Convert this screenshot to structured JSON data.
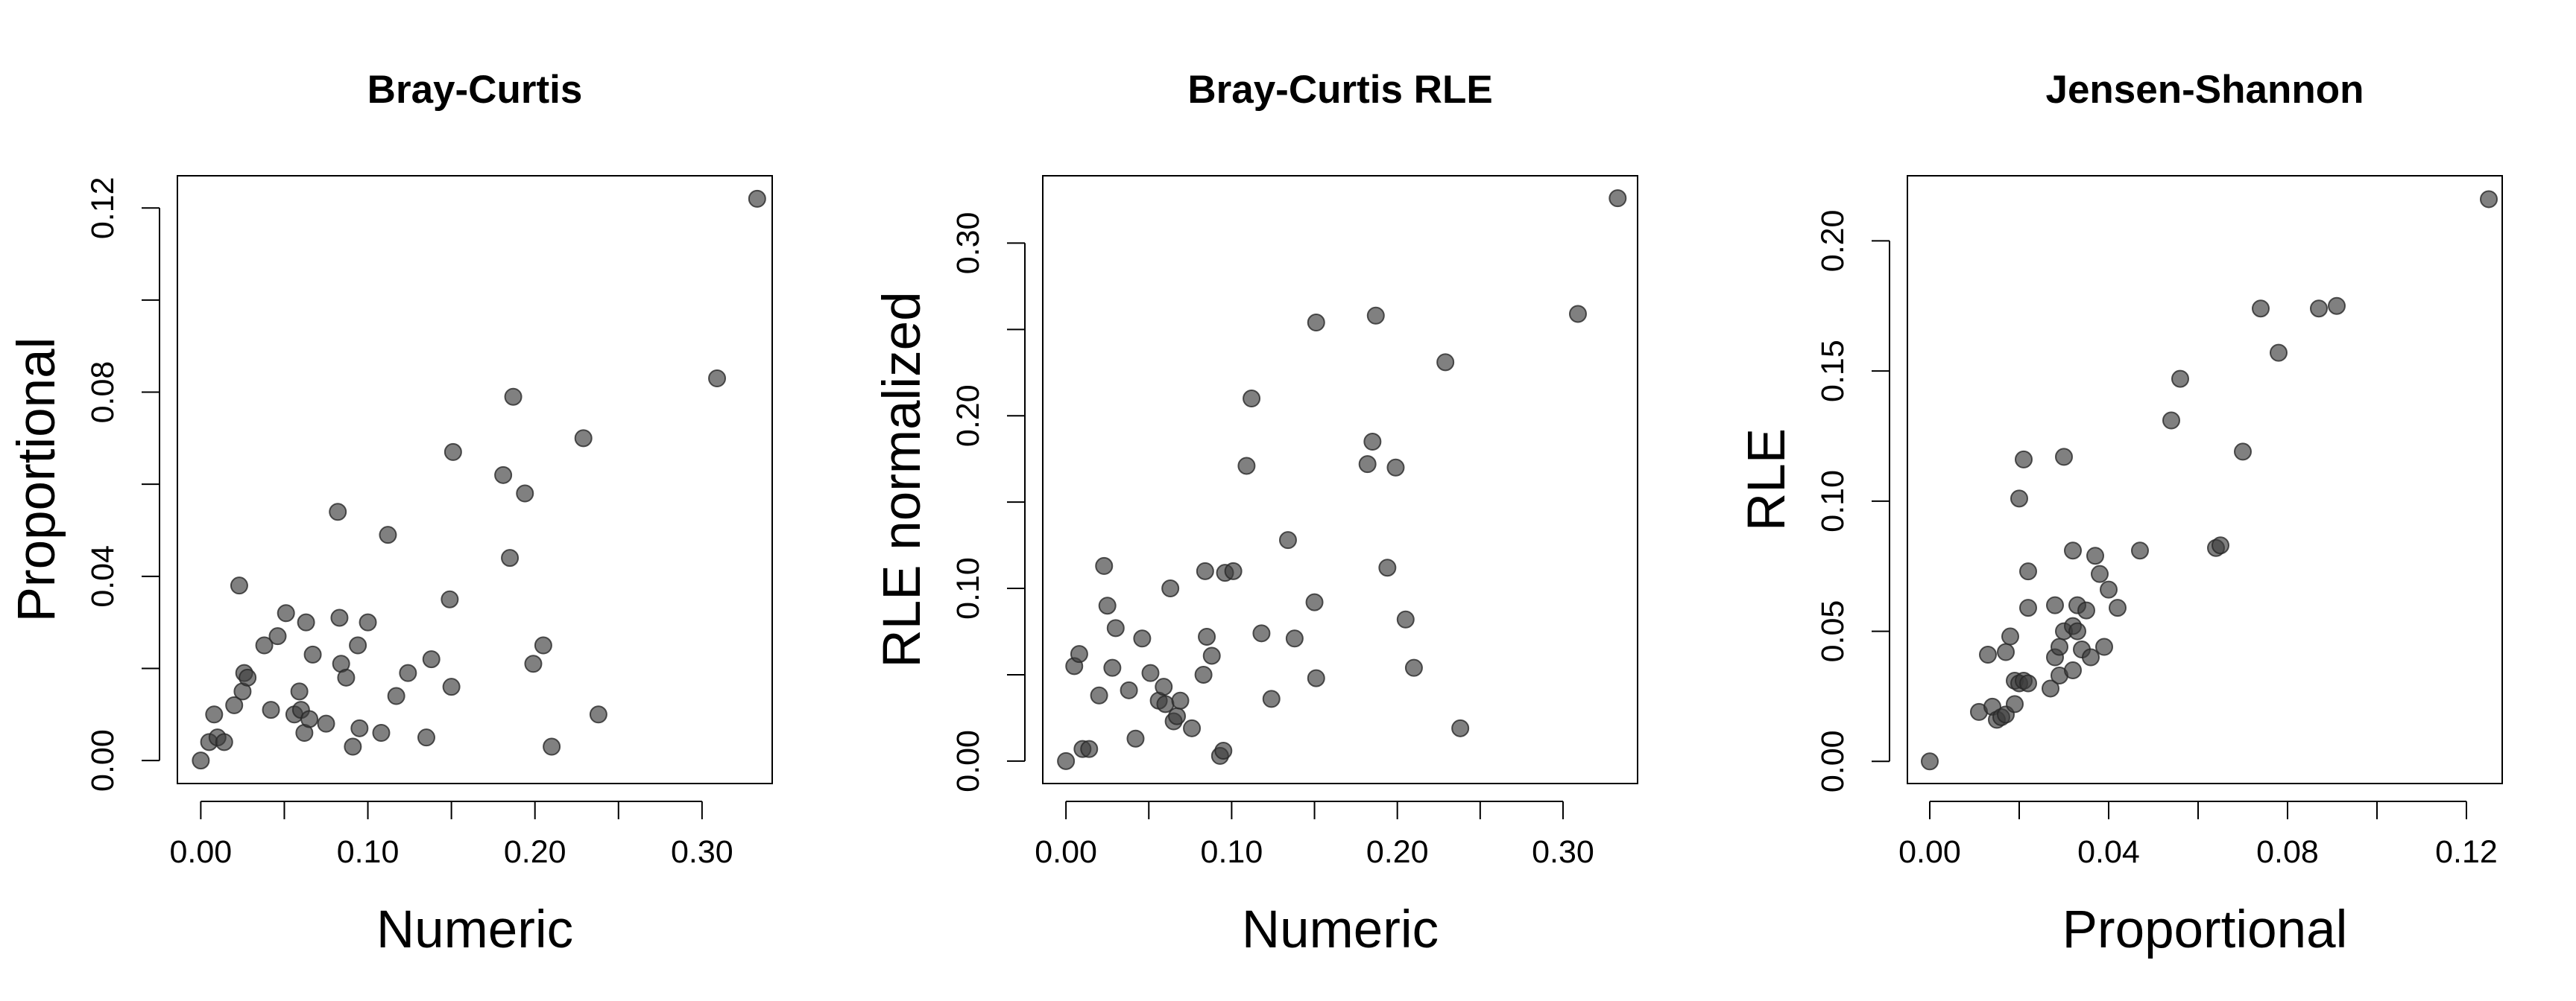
{
  "chart_data": [
    {
      "type": "scatter",
      "title": "Bray-Curtis",
      "xlabel": "Numeric",
      "ylabel": "Proportional",
      "xlim": [
        -0.014,
        0.342
      ],
      "ylim": [
        -0.005,
        0.127
      ],
      "xticks": [
        0.0,
        0.05,
        0.1,
        0.15,
        0.2,
        0.25,
        0.3
      ],
      "xtick_labels": [
        "0.00",
        "",
        "0.10",
        "",
        "0.20",
        "",
        "0.30"
      ],
      "yticks": [
        0.0,
        0.02,
        0.04,
        0.06,
        0.08,
        0.1,
        0.12
      ],
      "ytick_labels": [
        "0.00",
        "",
        "0.04",
        "",
        "0.08",
        "",
        "0.12"
      ],
      "grid": false,
      "point_color": "#505050",
      "points": [
        [
          0.0,
          0.0
        ],
        [
          0.005,
          0.004
        ],
        [
          0.008,
          0.01
        ],
        [
          0.01,
          0.005
        ],
        [
          0.014,
          0.004
        ],
        [
          0.02,
          0.012
        ],
        [
          0.023,
          0.038
        ],
        [
          0.025,
          0.015
        ],
        [
          0.026,
          0.019
        ],
        [
          0.028,
          0.018
        ],
        [
          0.038,
          0.025
        ],
        [
          0.042,
          0.011
        ],
        [
          0.046,
          0.027
        ],
        [
          0.051,
          0.032
        ],
        [
          0.056,
          0.01
        ],
        [
          0.059,
          0.015
        ],
        [
          0.06,
          0.011
        ],
        [
          0.062,
          0.006
        ],
        [
          0.063,
          0.03
        ],
        [
          0.065,
          0.009
        ],
        [
          0.067,
          0.023
        ],
        [
          0.075,
          0.008
        ],
        [
          0.082,
          0.054
        ],
        [
          0.083,
          0.031
        ],
        [
          0.084,
          0.021
        ],
        [
          0.087,
          0.018
        ],
        [
          0.091,
          0.003
        ],
        [
          0.094,
          0.025
        ],
        [
          0.095,
          0.007
        ],
        [
          0.1,
          0.03
        ],
        [
          0.108,
          0.006
        ],
        [
          0.112,
          0.049
        ],
        [
          0.117,
          0.014
        ],
        [
          0.124,
          0.019
        ],
        [
          0.135,
          0.005
        ],
        [
          0.138,
          0.022
        ],
        [
          0.149,
          0.035
        ],
        [
          0.15,
          0.016
        ],
        [
          0.151,
          0.067
        ],
        [
          0.181,
          0.062
        ],
        [
          0.185,
          0.044
        ],
        [
          0.187,
          0.079
        ],
        [
          0.194,
          0.058
        ],
        [
          0.199,
          0.021
        ],
        [
          0.205,
          0.025
        ],
        [
          0.21,
          0.003
        ],
        [
          0.229,
          0.07
        ],
        [
          0.238,
          0.01
        ],
        [
          0.309,
          0.083
        ],
        [
          0.333,
          0.122
        ]
      ]
    },
    {
      "type": "scatter",
      "title": "Bray-Curtis RLE",
      "xlabel": "Numeric",
      "ylabel": "RLE normalized",
      "xlim": [
        -0.014,
        0.345
      ],
      "ylim": [
        -0.013,
        0.339
      ],
      "xticks": [
        0.0,
        0.05,
        0.1,
        0.15,
        0.2,
        0.25,
        0.3
      ],
      "xtick_labels": [
        "0.00",
        "",
        "0.10",
        "",
        "0.20",
        "",
        "0.30"
      ],
      "yticks": [
        0.0,
        0.05,
        0.1,
        0.15,
        0.2,
        0.25,
        0.3
      ],
      "ytick_labels": [
        "0.00",
        "",
        "0.10",
        "",
        "0.20",
        "",
        "0.30"
      ],
      "grid": false,
      "point_color": "#505050",
      "points": [
        [
          0.0,
          0.0
        ],
        [
          0.005,
          0.055
        ],
        [
          0.008,
          0.062
        ],
        [
          0.01,
          0.007
        ],
        [
          0.014,
          0.007
        ],
        [
          0.02,
          0.038
        ],
        [
          0.023,
          0.113
        ],
        [
          0.025,
          0.09
        ],
        [
          0.028,
          0.054
        ],
        [
          0.03,
          0.077
        ],
        [
          0.038,
          0.041
        ],
        [
          0.042,
          0.013
        ],
        [
          0.046,
          0.071
        ],
        [
          0.051,
          0.051
        ],
        [
          0.056,
          0.035
        ],
        [
          0.059,
          0.043
        ],
        [
          0.06,
          0.033
        ],
        [
          0.063,
          0.1
        ],
        [
          0.065,
          0.023
        ],
        [
          0.067,
          0.026
        ],
        [
          0.069,
          0.035
        ],
        [
          0.076,
          0.019
        ],
        [
          0.083,
          0.05
        ],
        [
          0.084,
          0.11
        ],
        [
          0.085,
          0.072
        ],
        [
          0.088,
          0.061
        ],
        [
          0.093,
          0.003
        ],
        [
          0.095,
          0.006
        ],
        [
          0.096,
          0.109
        ],
        [
          0.101,
          0.11
        ],
        [
          0.109,
          0.171
        ],
        [
          0.112,
          0.21
        ],
        [
          0.118,
          0.074
        ],
        [
          0.124,
          0.036
        ],
        [
          0.134,
          0.128
        ],
        [
          0.138,
          0.071
        ],
        [
          0.15,
          0.092
        ],
        [
          0.151,
          0.254
        ],
        [
          0.151,
          0.048
        ],
        [
          0.182,
          0.172
        ],
        [
          0.185,
          0.185
        ],
        [
          0.187,
          0.258
        ],
        [
          0.194,
          0.112
        ],
        [
          0.199,
          0.17
        ],
        [
          0.205,
          0.082
        ],
        [
          0.21,
          0.054
        ],
        [
          0.229,
          0.231
        ],
        [
          0.238,
          0.019
        ],
        [
          0.309,
          0.259
        ],
        [
          0.333,
          0.326
        ]
      ]
    },
    {
      "type": "scatter",
      "title": "Jensen-Shannon",
      "xlabel": "Proportional",
      "ylabel": "RLE",
      "xlim": [
        -0.005,
        0.128
      ],
      "ylim": [
        -0.0085,
        0.225
      ],
      "xticks": [
        0.0,
        0.02,
        0.04,
        0.06,
        0.08,
        0.1,
        0.12
      ],
      "xtick_labels": [
        "0.00",
        "",
        "0.04",
        "",
        "0.08",
        "",
        "0.12"
      ],
      "yticks": [
        0.0,
        0.05,
        0.1,
        0.15,
        0.2
      ],
      "ytick_labels": [
        "0.00",
        "0.05",
        "0.10",
        "0.15",
        "0.20"
      ],
      "grid": false,
      "point_color": "#505050",
      "points": [
        [
          0.0,
          0.0
        ],
        [
          0.011,
          0.019
        ],
        [
          0.013,
          0.041
        ],
        [
          0.014,
          0.021
        ],
        [
          0.015,
          0.016
        ],
        [
          0.016,
          0.017
        ],
        [
          0.017,
          0.018
        ],
        [
          0.017,
          0.042
        ],
        [
          0.018,
          0.048
        ],
        [
          0.019,
          0.022
        ],
        [
          0.019,
          0.031
        ],
        [
          0.02,
          0.03
        ],
        [
          0.02,
          0.101
        ],
        [
          0.021,
          0.031
        ],
        [
          0.021,
          0.116
        ],
        [
          0.022,
          0.03
        ],
        [
          0.022,
          0.059
        ],
        [
          0.022,
          0.073
        ],
        [
          0.027,
          0.028
        ],
        [
          0.028,
          0.06
        ],
        [
          0.028,
          0.04
        ],
        [
          0.029,
          0.044
        ],
        [
          0.029,
          0.033
        ],
        [
          0.03,
          0.05
        ],
        [
          0.03,
          0.117
        ],
        [
          0.032,
          0.035
        ],
        [
          0.032,
          0.081
        ],
        [
          0.032,
          0.052
        ],
        [
          0.033,
          0.06
        ],
        [
          0.033,
          0.05
        ],
        [
          0.034,
          0.043
        ],
        [
          0.035,
          0.058
        ],
        [
          0.036,
          0.04
        ],
        [
          0.037,
          0.079
        ],
        [
          0.038,
          0.072
        ],
        [
          0.039,
          0.044
        ],
        [
          0.04,
          0.066
        ],
        [
          0.042,
          0.059
        ],
        [
          0.047,
          0.081
        ],
        [
          0.054,
          0.131
        ],
        [
          0.056,
          0.147
        ],
        [
          0.064,
          0.082
        ],
        [
          0.065,
          0.083
        ],
        [
          0.07,
          0.119
        ],
        [
          0.074,
          0.174
        ],
        [
          0.078,
          0.157
        ],
        [
          0.087,
          0.174
        ],
        [
          0.091,
          0.175
        ],
        [
          0.125,
          0.216
        ]
      ]
    }
  ]
}
